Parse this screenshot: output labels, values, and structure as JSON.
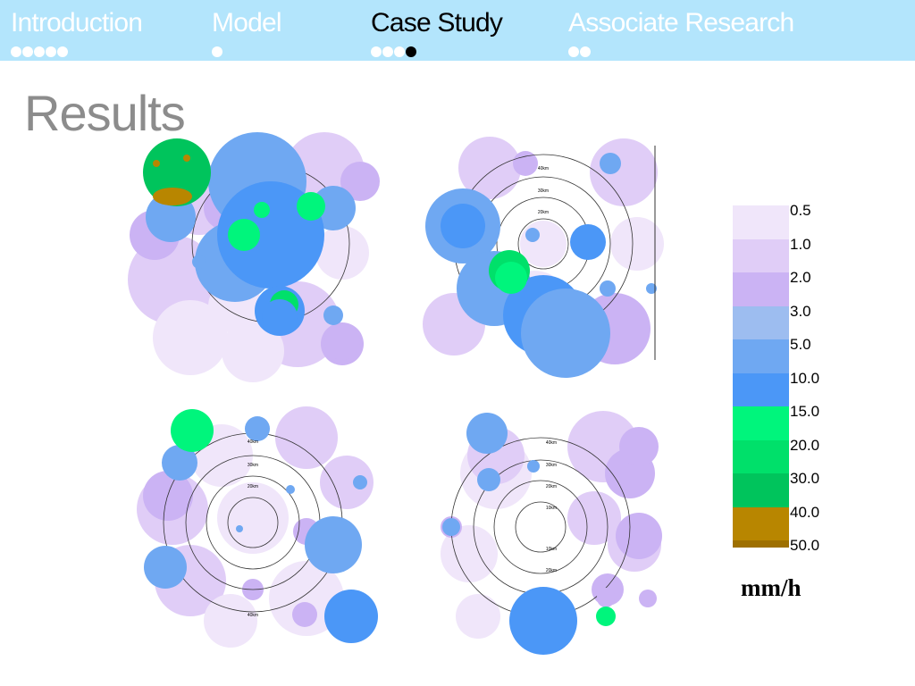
{
  "nav": {
    "sections": [
      {
        "label": "Introduction",
        "dots": 5,
        "current_dot": -1,
        "active": false
      },
      {
        "label": "Model",
        "dots": 1,
        "current_dot": -1,
        "active": false
      },
      {
        "label": "Case Study",
        "dots": 4,
        "current_dot": 3,
        "active": true
      },
      {
        "label": "Associate Research",
        "dots": 2,
        "current_dot": -1,
        "active": false
      }
    ]
  },
  "slide": {
    "title": "Results"
  },
  "radar_panels": [
    {
      "name": "radar-image-top-left",
      "range_labels": []
    },
    {
      "name": "radar-image-top-right",
      "range_labels": [
        "40km",
        "30km",
        "20km"
      ]
    },
    {
      "name": "radar-image-bottom-left",
      "range_labels": [
        "40km",
        "30km",
        "20km",
        "40km"
      ]
    },
    {
      "name": "radar-image-bottom-right",
      "range_labels": [
        "40km",
        "30km",
        "20km",
        "10km",
        "10km",
        "20km"
      ]
    }
  ],
  "legend": {
    "items": [
      {
        "label": "0.5",
        "color": "#f0e6fa"
      },
      {
        "label": "1.0",
        "color": "#e0cdf7"
      },
      {
        "label": "2.0",
        "color": "#cbb3f4"
      },
      {
        "label": "3.0",
        "color": "#9dbdf0"
      },
      {
        "label": "5.0",
        "color": "#6fa8f2"
      },
      {
        "label": "10.0",
        "color": "#4b97f7"
      },
      {
        "label": "15.0",
        "color": "#00f57c"
      },
      {
        "label": "20.0",
        "color": "#00e06a"
      },
      {
        "label": "30.0",
        "color": "#00c45c"
      },
      {
        "label": "40.0",
        "color": "#b88600"
      },
      {
        "label": "50.0",
        "color": "#9e7000"
      }
    ],
    "unit": "mm/h"
  }
}
